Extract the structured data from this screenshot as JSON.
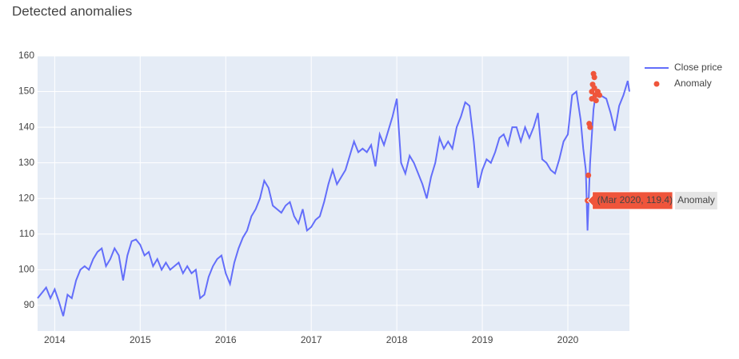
{
  "chart_data": {
    "type": "line",
    "title": "Detected anomalies",
    "xlim": [
      2013.8,
      2020.72
    ],
    "xticks": [
      2014,
      2015,
      2016,
      2017,
      2018,
      2019,
      2020
    ],
    "ylim": [
      82.8,
      160
    ],
    "yticks": [
      90,
      100,
      110,
      120,
      130,
      140,
      150,
      160
    ],
    "grid": true,
    "legend": "right",
    "series": [
      {
        "name": "Close price",
        "color": "#636efa",
        "mode": "line",
        "x": [
          2013.8,
          2013.85,
          2013.9,
          2013.95,
          2014.0,
          2014.05,
          2014.1,
          2014.15,
          2014.2,
          2014.25,
          2014.3,
          2014.35,
          2014.4,
          2014.45,
          2014.5,
          2014.55,
          2014.6,
          2014.65,
          2014.7,
          2014.75,
          2014.8,
          2014.85,
          2014.9,
          2014.95,
          2015.0,
          2015.05,
          2015.1,
          2015.15,
          2015.2,
          2015.25,
          2015.3,
          2015.35,
          2015.4,
          2015.45,
          2015.5,
          2015.55,
          2015.6,
          2015.65,
          2015.7,
          2015.75,
          2015.8,
          2015.85,
          2015.9,
          2015.95,
          2016.0,
          2016.05,
          2016.1,
          2016.15,
          2016.2,
          2016.25,
          2016.3,
          2016.35,
          2016.4,
          2016.45,
          2016.5,
          2016.55,
          2016.6,
          2016.65,
          2016.7,
          2016.75,
          2016.8,
          2016.85,
          2016.9,
          2016.95,
          2017.0,
          2017.05,
          2017.1,
          2017.15,
          2017.2,
          2017.25,
          2017.3,
          2017.35,
          2017.4,
          2017.45,
          2017.5,
          2017.55,
          2017.6,
          2017.65,
          2017.7,
          2017.75,
          2017.8,
          2017.85,
          2017.9,
          2017.95,
          2018.0,
          2018.05,
          2018.1,
          2018.15,
          2018.2,
          2018.25,
          2018.3,
          2018.35,
          2018.4,
          2018.45,
          2018.5,
          2018.55,
          2018.6,
          2018.65,
          2018.7,
          2018.75,
          2018.8,
          2018.85,
          2018.9,
          2018.95,
          2019.0,
          2019.05,
          2019.1,
          2019.15,
          2019.2,
          2019.25,
          2019.3,
          2019.35,
          2019.4,
          2019.45,
          2019.5,
          2019.55,
          2019.6,
          2019.65,
          2019.7,
          2019.75,
          2019.8,
          2019.85,
          2019.9,
          2019.95,
          2020.0,
          2020.05,
          2020.1,
          2020.15,
          2020.18,
          2020.21,
          2020.23,
          2020.26,
          2020.3,
          2020.33,
          2020.38,
          2020.45,
          2020.5,
          2020.55,
          2020.6,
          2020.65,
          2020.7,
          2020.72
        ],
        "values": [
          92,
          93.5,
          95,
          92,
          94.5,
          91,
          87,
          93,
          92,
          97,
          100,
          101,
          100,
          103,
          105,
          106,
          101,
          103,
          106,
          104,
          97,
          104,
          108,
          108.5,
          107,
          104,
          105,
          101,
          103,
          100,
          102,
          100,
          101,
          102,
          99,
          101,
          99,
          100,
          92,
          93,
          98,
          101,
          103,
          104,
          99,
          96,
          102,
          106,
          109,
          111,
          115,
          117,
          120,
          125,
          123,
          118,
          117,
          116,
          118,
          119,
          115,
          113,
          117,
          111,
          112,
          114,
          115,
          119,
          124,
          128,
          124,
          126,
          128,
          132,
          136,
          133,
          134,
          133,
          135,
          129,
          138,
          135,
          139,
          143,
          148,
          130,
          127,
          132,
          130,
          127,
          124,
          120,
          126,
          130,
          137,
          134,
          136,
          134,
          140,
          143,
          147,
          146,
          136,
          123,
          128,
          131,
          130,
          133,
          137,
          138,
          135,
          140,
          140,
          136,
          140,
          137,
          140,
          144,
          131,
          130,
          128,
          127,
          131,
          136,
          138,
          149,
          150,
          142,
          134,
          128,
          111,
          130,
          145,
          150,
          149,
          148,
          144,
          139,
          146,
          149,
          153,
          150
        ]
      },
      {
        "name": "Anomaly",
        "color": "#ef553b",
        "mode": "markers",
        "x": [
          2020.23,
          2020.24,
          2020.25,
          2020.26,
          2020.28,
          2020.28,
          2020.29,
          2020.3,
          2020.31,
          2020.31,
          2020.32,
          2020.33,
          2020.35,
          2020.37
        ],
        "values": [
          119.4,
          126.5,
          141,
          140,
          148,
          150,
          152,
          155,
          154,
          151,
          149,
          147.5,
          150,
          149
        ]
      }
    ],
    "hover": {
      "text": "(Mar 2020, 119.4)",
      "name": "Anomaly"
    }
  }
}
